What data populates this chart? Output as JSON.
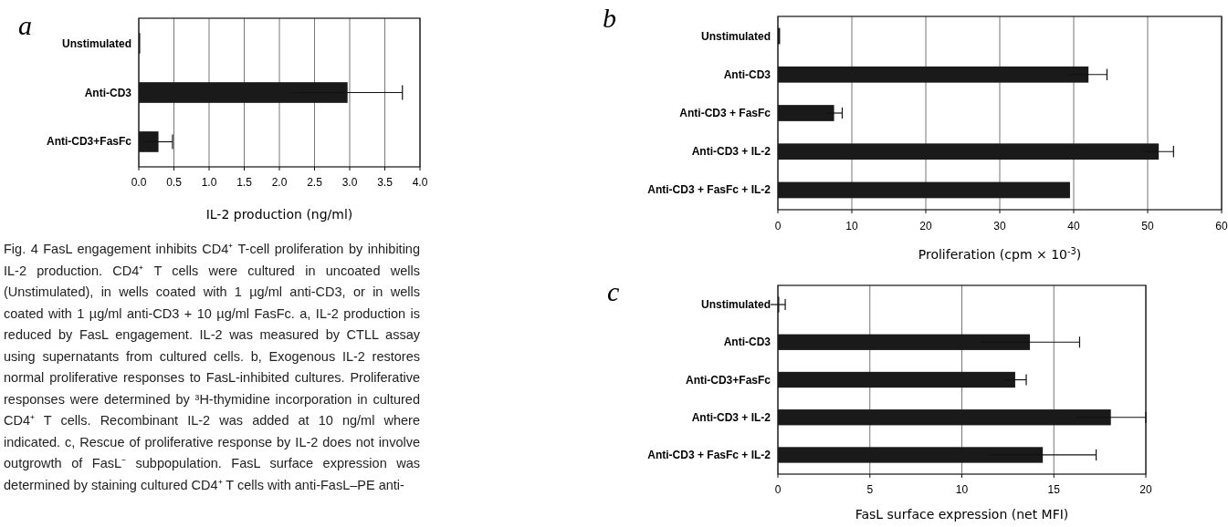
{
  "chart_data": [
    {
      "type": "bar",
      "orientation": "horizontal",
      "title": "a",
      "xlabel": "IL-2 production (ng/ml)",
      "categories": [
        "Unstimulated",
        "Anti-CD3",
        "Anti-CD3+FasFc"
      ],
      "values": [
        0.02,
        2.97,
        0.28
      ],
      "errors": [
        null,
        0.78,
        0.2
      ],
      "color": "#1a1a1a",
      "xlim": [
        0,
        4
      ],
      "xticks": [
        {
          "value": 0,
          "label": "0.0"
        },
        0.5,
        {
          "value": 1,
          "label": "1.0"
        },
        1.5,
        {
          "value": 2,
          "label": "2.0"
        },
        2.5,
        {
          "value": 3,
          "label": "3.0"
        },
        3.5,
        {
          "value": 4,
          "label": "4.0"
        }
      ],
      "grid": "x",
      "annotations": [
        "Fig. 4 FasL engagement inhibits CD4⁺ T-cell proliferation by inhibiting IL-2 production. CD4⁺ T cells were cultured in uncoated wells (Unstimulated), in wells coated with 1 µg/ml anti-CD3, or in wells coated with 1 µg/ml anti-CD3 + 10 µg/ml FasFc. a, IL-2 production is reduced by FasL engagement. IL-2 was measured by CTLL assay using supernatants from cultured cells. b, Exogenous IL-2 restores normal proliferative responses to FasL-inhibited cultures. Proliferative responses were determined by ³H-thymidine incorporation in cultured CD4⁺ T cells. Recombinant IL-2 was added at 10 ng/ml where indicated. c, Rescue of proliferative response by IL-2 does not involve outgrowth of FasL⁻ subpopulation. FasL surface expression was determined by staining cultured CD4⁺ T cells with anti-FasL–PE anti-"
      ]
    },
    {
      "type": "bar",
      "orientation": "horizontal",
      "title": "b",
      "xlabel": "Proliferation (cpm × 10$^{-3}$)",
      "categories": [
        "Unstimulated",
        "Anti-CD3",
        "Anti-CD3 + FasFc",
        "Anti-CD3 + IL-2",
        "Anti-CD3 + FasFc + IL-2"
      ],
      "values": [
        0.3,
        42,
        7.6,
        51.5,
        39.5
      ],
      "errors": [
        null,
        2.5,
        1.1,
        2,
        null
      ],
      "color": "#1a1a1a",
      "xlim": [
        0,
        60
      ],
      "xticks": [
        0,
        10,
        20,
        30,
        40,
        50,
        60
      ],
      "grid": "x"
    },
    {
      "type": "bar",
      "orientation": "horizontal",
      "title": "c",
      "xlabel": "FasL surface expression (net MFI)",
      "categories": [
        "Unstimulated",
        "Anti-CD3",
        "Anti-CD3+FasFc",
        "Anti-CD3 + IL-2",
        "Anti-CD3 + FasFc + IL-2"
      ],
      "values": [
        0,
        13.7,
        12.9,
        18.1,
        14.4
      ],
      "errors": [
        0.4,
        2.7,
        0.6,
        1.9,
        2.9
      ],
      "color": "#1a1a1a",
      "xlim": [
        0,
        20
      ],
      "xticks": [
        0,
        5,
        10,
        15,
        20
      ],
      "grid": "x"
    }
  ]
}
